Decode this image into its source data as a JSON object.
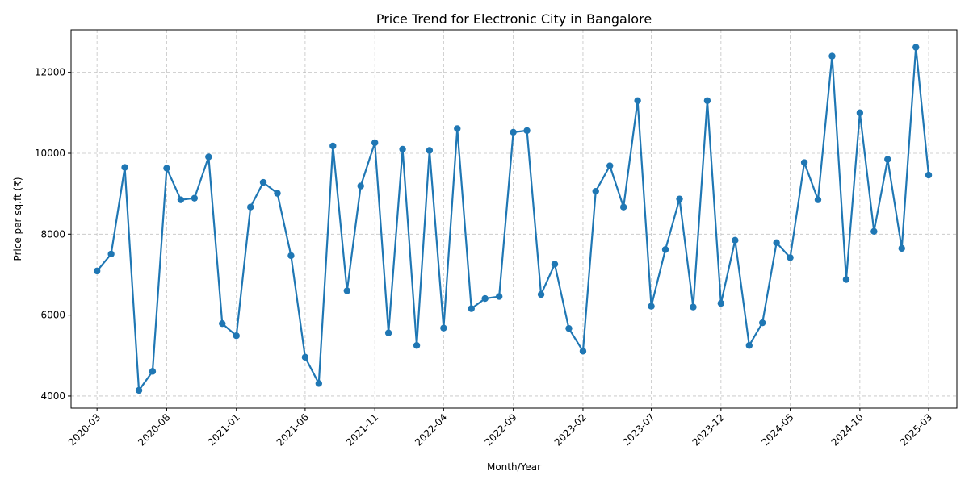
{
  "chart_data": {
    "type": "line",
    "title": "Price Trend for Electronic City in Bangalore",
    "xlabel": "Month/Year",
    "ylabel": "Price per sq.ft (₹)",
    "grid": true,
    "color": "#1f77b4",
    "ylim": [
      3700,
      13050
    ],
    "xlim": [
      "2020-01-04",
      "2025-05-02"
    ],
    "yticks": [
      4000,
      6000,
      8000,
      10000,
      12000
    ],
    "xticks": [
      "2020-03",
      "2020-08",
      "2021-01",
      "2021-06",
      "2021-11",
      "2022-04",
      "2022-09",
      "2023-02",
      "2023-07",
      "2023-12",
      "2024-05",
      "2024-10",
      "2025-03"
    ],
    "x": [
      "2020-03",
      "2020-04",
      "2020-05",
      "2020-06",
      "2020-07",
      "2020-08",
      "2020-09",
      "2020-10",
      "2020-11",
      "2020-12",
      "2021-01",
      "2021-02",
      "2021-03",
      "2021-04",
      "2021-05",
      "2021-06",
      "2021-07",
      "2021-08",
      "2021-09",
      "2021-10",
      "2021-11",
      "2021-12",
      "2022-01",
      "2022-02",
      "2022-03",
      "2022-04",
      "2022-05",
      "2022-06",
      "2022-07",
      "2022-08",
      "2022-09",
      "2022-10",
      "2022-11",
      "2022-12",
      "2023-01",
      "2023-02",
      "2023-03",
      "2023-04",
      "2023-05",
      "2023-06",
      "2023-07",
      "2023-08",
      "2023-09",
      "2023-10",
      "2023-11",
      "2023-12",
      "2024-01",
      "2024-02",
      "2024-03",
      "2024-04",
      "2024-05",
      "2024-06",
      "2024-07",
      "2024-08",
      "2024-09",
      "2024-10",
      "2024-11",
      "2024-12",
      "2025-01",
      "2025-02",
      "2025-03"
    ],
    "series": [
      {
        "values": [
          7090,
          7510,
          9650,
          4140,
          4610,
          9630,
          8850,
          8890,
          9910,
          5790,
          5490,
          8670,
          9280,
          9010,
          7470,
          4960,
          4310,
          10180,
          6600,
          9190,
          10260,
          5560,
          10100,
          5250,
          10070,
          5680,
          10610,
          6160,
          6410,
          6460,
          10520,
          10560,
          6510,
          7260,
          5670,
          5110,
          9060,
          9690,
          8670,
          11300,
          6220,
          7620,
          8870,
          6200,
          11300,
          6290,
          7850,
          5250,
          5810,
          7790,
          7420,
          9770,
          8850,
          12400,
          6880,
          11000,
          8070,
          9850,
          7650,
          12620,
          9460
        ]
      }
    ]
  }
}
